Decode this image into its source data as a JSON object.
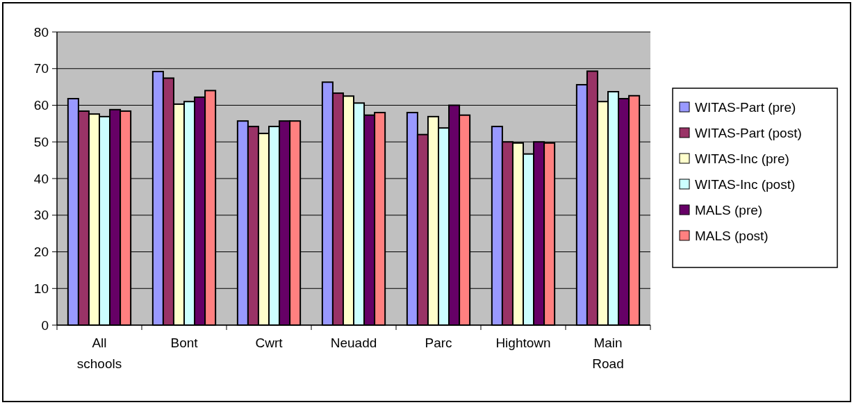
{
  "chart_data": {
    "type": "bar",
    "categories": [
      "All schools",
      "Bont",
      "Cwrt",
      "Neuadd",
      "Parc",
      "Hightown",
      "Main Road"
    ],
    "series": [
      {
        "name": "WITAS-Part (pre)",
        "color": "#9999ff",
        "values": [
          61.8,
          69.2,
          55.7,
          66.3,
          58,
          54.2,
          65.6
        ]
      },
      {
        "name": "WITAS-Part (post)",
        "color": "#993366",
        "values": [
          58.4,
          67.4,
          54.2,
          63.3,
          52,
          50,
          69.3
        ]
      },
      {
        "name": "WITAS-Inc (pre)",
        "color": "#ffffcc",
        "values": [
          57.6,
          60.3,
          52.3,
          62.5,
          56.9,
          49.7,
          61
        ]
      },
      {
        "name": "WITAS-Inc (post)",
        "color": "#ccffff",
        "values": [
          56.9,
          61,
          54.2,
          60.6,
          53.8,
          46.7,
          63.7
        ]
      },
      {
        "name": "MALS (pre)",
        "color": "#660066",
        "values": [
          58.8,
          62.2,
          55.7,
          57.3,
          60,
          50,
          61.8
        ]
      },
      {
        "name": "MALS (post)",
        "color": "#ff8080",
        "values": [
          58.4,
          64,
          55.7,
          58,
          57.3,
          49.7,
          62.6
        ]
      }
    ],
    "ylim": [
      0,
      80
    ],
    "yticks": [
      0,
      10,
      20,
      30,
      40,
      50,
      60,
      70,
      80
    ],
    "grid": "y",
    "legend": "right"
  }
}
